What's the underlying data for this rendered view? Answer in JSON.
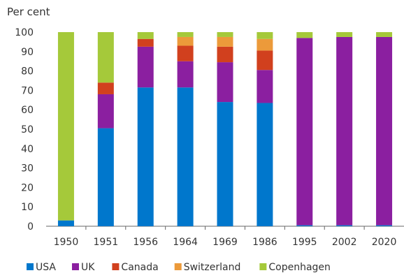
{
  "chart_data": {
    "type": "bar",
    "stacked": true,
    "ylabel": "Per cent",
    "ylim": [
      0,
      100
    ],
    "y_ticks": [
      0,
      10,
      20,
      30,
      40,
      50,
      60,
      70,
      80,
      90,
      100
    ],
    "grid": false,
    "legend_position": "bottom",
    "categories": [
      "1950",
      "1951",
      "1956",
      "1964",
      "1969",
      "1986",
      "1995",
      "2002",
      "2020"
    ],
    "series": [
      {
        "name": "USA",
        "color": "#0077cc",
        "values": [
          3,
          50.5,
          71.5,
          71.5,
          64,
          63.5,
          0.5,
          0.5,
          0.5
        ]
      },
      {
        "name": "UK",
        "color": "#8b1fa0",
        "values": [
          0,
          17.5,
          21,
          13.5,
          20.5,
          17,
          96.5,
          97,
          97
        ]
      },
      {
        "name": "Canada",
        "color": "#d1401e",
        "values": [
          0,
          6,
          4,
          8,
          8,
          10,
          0,
          0,
          0
        ]
      },
      {
        "name": "Switzerland",
        "color": "#ec9a3a",
        "values": [
          0,
          0,
          0,
          4.5,
          5,
          6,
          0,
          0,
          0
        ]
      },
      {
        "name": "Copenhagen",
        "color": "#a5c93a",
        "values": [
          97,
          26,
          3.5,
          2.5,
          2.5,
          3.5,
          3,
          2.5,
          2.5
        ]
      }
    ]
  }
}
